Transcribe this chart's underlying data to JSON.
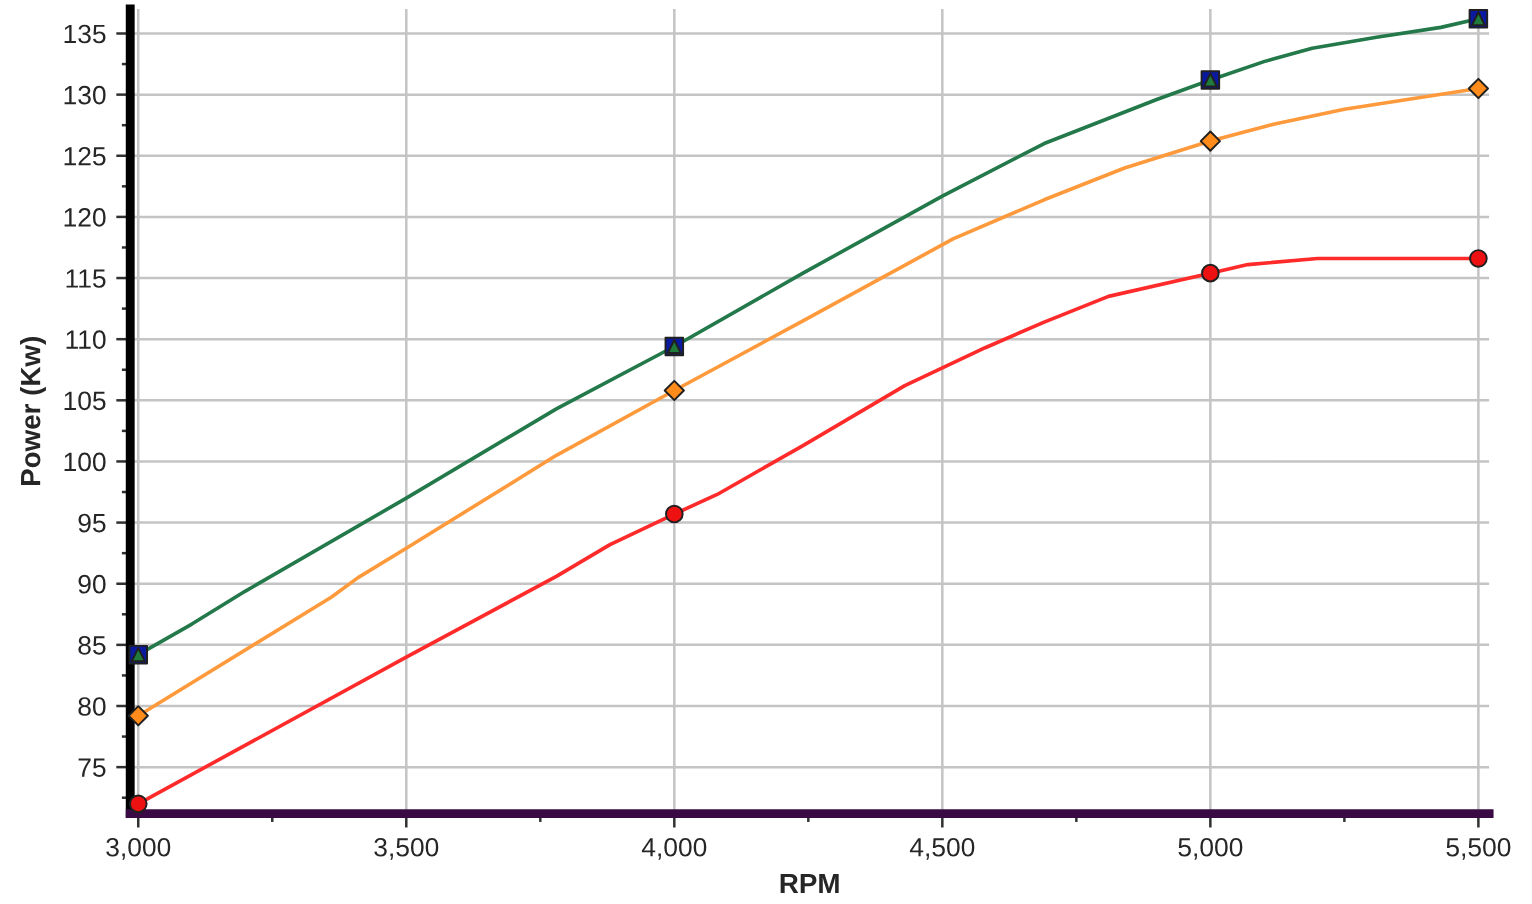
{
  "chart_data": {
    "type": "line",
    "xlabel": "RPM",
    "ylabel": "Power (Kw)",
    "xlim": [
      2985,
      5520
    ],
    "ylim": [
      71.2,
      137
    ],
    "xticks": [
      {
        "value": 3000,
        "label": "3,000"
      },
      {
        "value": 3250,
        "label": null
      },
      {
        "value": 3500,
        "label": "3,500"
      },
      {
        "value": 3750,
        "label": null
      },
      {
        "value": 4000,
        "label": "4,000"
      },
      {
        "value": 4250,
        "label": null
      },
      {
        "value": 4500,
        "label": "4,500"
      },
      {
        "value": 4750,
        "label": null
      },
      {
        "value": 5000,
        "label": "5,000"
      },
      {
        "value": 5250,
        "label": null
      },
      {
        "value": 5500,
        "label": "5,500"
      }
    ],
    "yticks": [
      {
        "value": 72.5,
        "label": null
      },
      75,
      {
        "value": 77.5,
        "label": null
      },
      80,
      {
        "value": 82.5,
        "label": null
      },
      85,
      {
        "value": 87.5,
        "label": null
      },
      90,
      {
        "value": 92.5,
        "label": null
      },
      95,
      {
        "value": 97.5,
        "label": null
      },
      100,
      {
        "value": 102.5,
        "label": null
      },
      105,
      {
        "value": 107.5,
        "label": null
      },
      110,
      {
        "value": 112.5,
        "label": null
      },
      115,
      {
        "value": 117.5,
        "label": null
      },
      120,
      {
        "value": 122.5,
        "label": null
      },
      125,
      {
        "value": 127.5,
        "label": null
      },
      130,
      {
        "value": 132.5,
        "label": null
      },
      135
    ],
    "grid": true,
    "series": [
      {
        "marker": "none",
        "line_style": "solid",
        "color": "#ff2a2a",
        "x": [
          3000,
          3500,
          3780,
          3880,
          4000,
          4080,
          4240,
          4430,
          4580,
          4690,
          4810,
          5000,
          5070,
          5200,
          5500
        ],
        "values": [
          72.0,
          84.0,
          90.6,
          93.2,
          95.7,
          97.3,
          101.3,
          106.2,
          109.3,
          111.4,
          113.5,
          115.4,
          116.1,
          116.6,
          116.6
        ]
      },
      {
        "marker": "none",
        "line_style": "solid",
        "color": "#ff9a3c",
        "x": [
          3000,
          3360,
          3410,
          3500,
          3780,
          4000,
          4240,
          4520,
          4690,
          4840,
          5000,
          5120,
          5250,
          5500
        ],
        "values": [
          79.2,
          88.9,
          90.5,
          92.9,
          100.5,
          105.8,
          111.5,
          118.2,
          121.4,
          124.0,
          126.2,
          127.6,
          128.8,
          130.5
        ]
      },
      {
        "marker": "none",
        "line_style": "solid",
        "color": "#23794a",
        "x": [
          3000,
          3100,
          3200,
          3500,
          3780,
          4000,
          4240,
          4500,
          4690,
          4900,
          5000,
          5100,
          5190,
          5310,
          5430,
          5500
        ],
        "values": [
          84.2,
          86.7,
          89.4,
          97.0,
          104.3,
          109.4,
          115.4,
          121.7,
          126.0,
          129.6,
          131.2,
          132.7,
          133.8,
          134.7,
          135.5,
          136.2
        ]
      },
      {
        "type": "scatter",
        "marker": "circle",
        "color": "#ee1111",
        "x": [
          3000,
          4000,
          5000,
          5500
        ],
        "values": [
          72.0,
          95.7,
          115.4,
          116.6
        ]
      },
      {
        "type": "scatter",
        "marker": "diamond",
        "color": "#ff8c1a",
        "x": [
          3000,
          4000,
          5000,
          5500
        ],
        "values": [
          79.2,
          105.8,
          126.2,
          130.5
        ]
      },
      {
        "type": "scatter",
        "marker": "square",
        "color": "#0a1aa0",
        "x": [
          3000,
          4000,
          5000,
          5500
        ],
        "values": [
          84.2,
          109.4,
          131.2,
          136.2
        ]
      },
      {
        "type": "scatter",
        "marker": "triangle",
        "color": "#1f7a3c",
        "x": [
          3000,
          4000,
          5000,
          5500
        ],
        "values": [
          84.2,
          109.4,
          131.2,
          136.2
        ]
      }
    ]
  }
}
